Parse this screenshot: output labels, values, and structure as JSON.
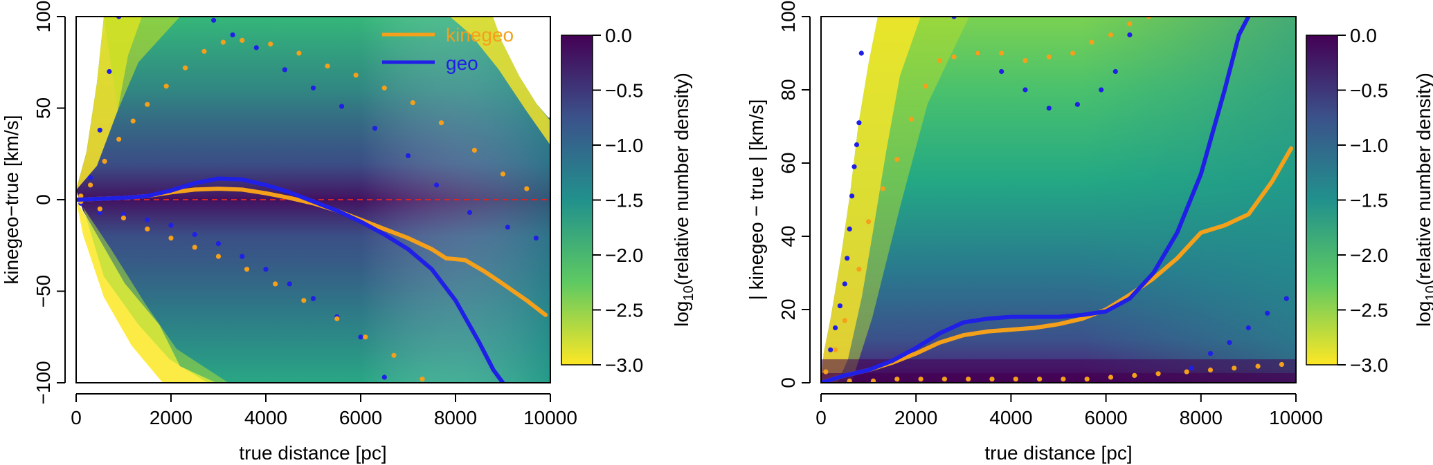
{
  "chart_data": [
    {
      "type": "density-line",
      "panel": "left",
      "xlabel": "true distance [pc]",
      "ylabel": "kinegeo−true [km/s]",
      "xlim": [
        0,
        10000
      ],
      "ylim": [
        -100,
        100
      ],
      "x_ticks": [
        0,
        2000,
        4000,
        6000,
        8000,
        10000
      ],
      "y_ticks": [
        -100,
        -50,
        0,
        50,
        100
      ],
      "x_tick_labels": [
        "0",
        "2000",
        "4000",
        "6000",
        "8000",
        "10000"
      ],
      "y_tick_labels": [
        "−100",
        "−50",
        "0",
        "50",
        "100"
      ],
      "reference_line": {
        "y": 0,
        "color": "#d62728",
        "style": "dashed"
      },
      "legend": {
        "position": "top-right",
        "entries": [
          {
            "label": "kinegeo",
            "color": "#f5a01a"
          },
          {
            "label": "geo",
            "color": "#1f1fe6"
          }
        ]
      },
      "colorbar": {
        "label_prefix": "log",
        "label_sub": "10",
        "label_suffix": "(relative number density)",
        "ticks": [
          0.0,
          -0.5,
          -1.0,
          -1.5,
          -2.0,
          -2.5,
          -3.0
        ],
        "tick_labels": [
          "0.0",
          "−0.5",
          "−1.0",
          "−1.5",
          "−2.0",
          "−2.5",
          "−3.0"
        ],
        "range": [
          -3.0,
          0.0
        ],
        "colors": [
          "#440154",
          "#3b528b",
          "#21918c",
          "#5ec962",
          "#fde725"
        ]
      },
      "series": [
        {
          "name": "kinegeo",
          "style": "line",
          "color": "#f5a01a",
          "x": [
            0,
            500,
            1000,
            1500,
            2000,
            2500,
            3000,
            3500,
            4000,
            4500,
            5000,
            5500,
            6000,
            6500,
            7000,
            7500,
            7800,
            8200,
            8600,
            9000,
            9500,
            9900
          ],
          "y": [
            0,
            0.5,
            1,
            2,
            4,
            5.5,
            6,
            5.5,
            3.5,
            1,
            -2,
            -6,
            -11,
            -16,
            -21,
            -27,
            -32,
            -33,
            -39,
            -46,
            -55,
            -63
          ]
        },
        {
          "name": "geo",
          "style": "line",
          "color": "#1f1fe6",
          "x": [
            0,
            500,
            1000,
            1500,
            2000,
            2500,
            3000,
            3500,
            4000,
            4500,
            5000,
            5500,
            6000,
            6500,
            7000,
            7500,
            8000,
            8500,
            8800,
            9000
          ],
          "y": [
            0,
            0.5,
            1,
            2,
            5,
            9,
            11.5,
            11,
            8,
            4,
            -1,
            -6,
            -12,
            -19,
            -27,
            -38,
            -55,
            -78,
            -93,
            -100
          ]
        },
        {
          "name": "geo upper",
          "style": "points",
          "color": "#1f1fe6",
          "x": [
            100,
            300,
            500,
            700,
            900,
            2900,
            3300,
            3800,
            4400,
            5000,
            5600,
            6300,
            7000,
            7600,
            8300,
            9100,
            9700
          ],
          "y": [
            1,
            12,
            38,
            70,
            100,
            98,
            90,
            83,
            71,
            61,
            51,
            39,
            24,
            8,
            -7,
            -15,
            -21
          ]
        },
        {
          "name": "geo lower",
          "style": "points",
          "color": "#1f1fe6",
          "x": [
            100,
            500,
            1000,
            1500,
            2000,
            2500,
            3000,
            3500,
            4000,
            4500,
            5000,
            5500,
            6000,
            6500
          ],
          "y": [
            -2,
            -7,
            -8,
            -11,
            -14,
            -19,
            -24,
            -31,
            -38,
            -46,
            -54,
            -64,
            -75,
            -97
          ]
        },
        {
          "name": "kinegeo upper",
          "style": "points",
          "color": "#f5a01a",
          "x": [
            100,
            300,
            600,
            900,
            1200,
            1500,
            1900,
            2300,
            2700,
            3100,
            3500,
            4100,
            4700,
            5300,
            5900,
            6500,
            7100,
            7700,
            8400,
            9000,
            9500
          ],
          "y": [
            2,
            8,
            21,
            33,
            43,
            52,
            62,
            72,
            81,
            86,
            87,
            85,
            80,
            73,
            68,
            61,
            53,
            42,
            27,
            14,
            6
          ]
        },
        {
          "name": "kinegeo lower",
          "style": "points",
          "color": "#f5a01a",
          "x": [
            100,
            500,
            1000,
            1500,
            2000,
            2500,
            3000,
            3600,
            4200,
            4800,
            5500,
            6100,
            6700,
            7300
          ],
          "y": [
            -1,
            -5,
            -10,
            -16,
            -21,
            -26,
            -31,
            -38,
            -46,
            -55,
            -65,
            -75,
            -85,
            -98
          ]
        }
      ]
    },
    {
      "type": "density-line",
      "panel": "right",
      "xlabel": "true distance [pc]",
      "ylabel": "| kinegeo − true | [km/s]",
      "xlim": [
        0,
        10000
      ],
      "ylim": [
        0,
        100
      ],
      "x_ticks": [
        0,
        2000,
        4000,
        6000,
        8000,
        10000
      ],
      "y_ticks": [
        0,
        20,
        40,
        60,
        80,
        100
      ],
      "x_tick_labels": [
        "0",
        "2000",
        "4000",
        "6000",
        "8000",
        "10000"
      ],
      "y_tick_labels": [
        "0",
        "20",
        "40",
        "60",
        "80",
        "100"
      ],
      "colorbar": {
        "label_prefix": "log",
        "label_sub": "10",
        "label_suffix": "(relative number density)",
        "ticks": [
          0.0,
          -0.5,
          -1.0,
          -1.5,
          -2.0,
          -2.5,
          -3.0
        ],
        "tick_labels": [
          "0.0",
          "−0.5",
          "−1.0",
          "−1.5",
          "−2.0",
          "−2.5",
          "−3.0"
        ],
        "range": [
          -3.0,
          0.0
        ],
        "colors": [
          "#440154",
          "#3b528b",
          "#21918c",
          "#5ec962",
          "#fde725"
        ]
      },
      "series": [
        {
          "name": "kinegeo",
          "style": "line",
          "color": "#f5a01a",
          "x": [
            0,
            500,
            1000,
            1500,
            2000,
            2500,
            3000,
            3500,
            4000,
            4500,
            5000,
            5500,
            6000,
            6500,
            7000,
            7500,
            8000,
            8500,
            9000,
            9500,
            9900
          ],
          "y": [
            0,
            2,
            3.5,
            5.5,
            8,
            11,
            13,
            14,
            14.5,
            15,
            16,
            17.5,
            20,
            24,
            28.5,
            34,
            41,
            43,
            46,
            55,
            64
          ]
        },
        {
          "name": "geo",
          "style": "line",
          "color": "#1f1fe6",
          "x": [
            0,
            500,
            1000,
            1500,
            2000,
            2500,
            3000,
            3500,
            4000,
            4500,
            5000,
            5500,
            6000,
            6500,
            7000,
            7500,
            8000,
            8500,
            8800,
            9000
          ],
          "y": [
            0,
            2,
            3.5,
            6,
            9.5,
            13.5,
            16.5,
            17.5,
            18,
            18,
            18,
            18.5,
            19.5,
            23,
            30,
            41,
            57,
            80,
            95,
            100
          ]
        },
        {
          "name": "geo upper",
          "style": "points",
          "color": "#1f1fe6",
          "x": [
            200,
            300,
            400,
            500,
            550,
            600,
            650,
            700,
            750,
            800,
            850,
            2800,
            3300,
            3800,
            4300,
            4800,
            5400,
            5900,
            6200,
            6500
          ],
          "y": [
            9,
            15,
            21,
            27,
            34,
            42,
            51,
            59,
            65,
            71,
            90,
            100,
            90,
            85,
            80,
            75,
            76,
            80,
            85,
            95
          ]
        },
        {
          "name": "geo lower",
          "style": "points",
          "color": "#1f1fe6",
          "x": [
            7800,
            8200,
            8600,
            9000,
            9400,
            9800
          ],
          "y": [
            4,
            8,
            11,
            15,
            19,
            23
          ]
        },
        {
          "name": "kinegeo upper",
          "style": "points",
          "color": "#f5a01a",
          "x": [
            100,
            300,
            500,
            800,
            1000,
            1300,
            1600,
            1900,
            2200,
            2500,
            2800,
            3300,
            3800,
            4300,
            4800,
            5300,
            5700,
            6100,
            6500,
            6900
          ],
          "y": [
            3,
            9,
            17,
            31,
            44,
            53,
            61,
            72,
            81,
            88,
            89,
            90,
            90,
            88,
            89,
            90,
            93,
            95,
            98,
            100
          ]
        },
        {
          "name": "kinegeo lower",
          "style": "points",
          "color": "#f5a01a",
          "x": [
            100,
            600,
            1100,
            1600,
            2100,
            2600,
            3100,
            3600,
            4100,
            4600,
            5100,
            5600,
            6100,
            6600,
            7100,
            7700,
            8200,
            8700,
            9200,
            9700
          ],
          "y": [
            0,
            0.5,
            0.5,
            1,
            1,
            1,
            1,
            1,
            1,
            1,
            1,
            1,
            1.5,
            2,
            2.5,
            3,
            3.5,
            4,
            4.5,
            5
          ]
        }
      ]
    }
  ]
}
